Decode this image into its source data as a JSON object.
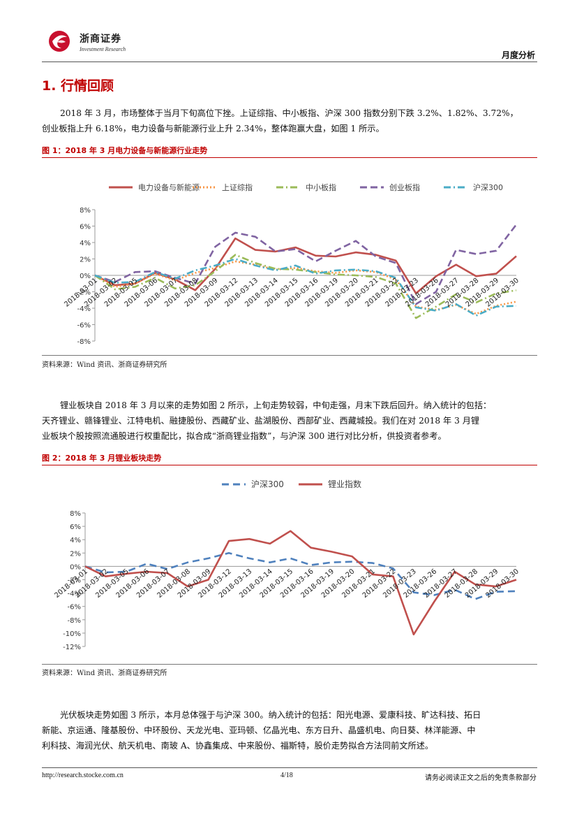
{
  "header": {
    "brand_cn": "浙商证券",
    "brand_en": "Investment Research",
    "report_type": "月度分析"
  },
  "section": {
    "title": "1. 行情回顾"
  },
  "para1": {
    "line1": "2018 年 3 月，市场整体于当月下旬高位下挫。上证综指、中小板指、沪深 300 指数分别下跌 3.2%、1.82%、3.72%，",
    "line2": "创业板指上升 6.18%，电力设备与新能源行业上升 2.34%，整体跑赢大盘，如图 1 所示。"
  },
  "fig1": {
    "title": "图 1：2018 年 3 月电力设备与新能源行业走势",
    "source": "资料来源：Wind 资讯、浙商证券研究所"
  },
  "para2": {
    "line1": "锂业板块自 2018 年 3 月以来的走势如图 2 所示，上旬走势较弱，中旬走强，月末下跌后回升。纳入统计的包括：",
    "line2": "天齐锂业、赣锋锂业、江特电机、融捷股份、西藏矿业、盐湖股份、西部矿业、西藏城投。我们在对 2018 年 3 月锂",
    "line3": "业板块个股按照流通股进行权重配比，拟合成“浙商锂业指数”，与沪深 300 进行对比分析，供投资者参考。"
  },
  "fig2": {
    "title": "图 2：2018 年 3 月锂业板块走势",
    "source": "资料来源：Wind 资讯、浙商证券研究所"
  },
  "para3": {
    "line1": "光伏板块走势如图 3 所示，本月总体强于与沪深 300。纳入统计的包括：阳光电源、爱康科技、旷达科技、拓日",
    "line2": "新能、京运通、隆基股份、中环股份、天龙光电、亚玛顿、亿晶光电、东方日升、晶盛机电、向日葵、林洋能源、中",
    "line3": "利科技、海润光伏、航天机电、南玻 A、协鑫集成、中来股份、福斯特，股价走势拟合方法同前文所述。"
  },
  "footer": {
    "url": "http://research.stocke.com.cn",
    "page": "4/18",
    "disclaimer": "请务必阅读正文之后的免责条款部分"
  },
  "chart_data": [
    {
      "type": "line",
      "title": "图 1：2018 年 3 月电力设备与新能源行业走势",
      "categories": [
        "2018-03-01",
        "2018-03-02",
        "2018-03-05",
        "2018-03-06",
        "2018-03-07",
        "2018-03-08",
        "2018-03-09",
        "2018-03-12",
        "2018-03-13",
        "2018-03-14",
        "2018-03-15",
        "2018-03-16",
        "2018-03-19",
        "2018-03-20",
        "2018-03-21",
        "2018-03-22",
        "2018-03-23",
        "2018-03-26",
        "2018-03-27",
        "2018-03-28",
        "2018-03-29",
        "2018-03-30"
      ],
      "yticks": [
        "8%",
        "6%",
        "4%",
        "2%",
        "0%",
        "-2%",
        "-4%",
        "-6%",
        "-8%"
      ],
      "ylim": [
        -8,
        8
      ],
      "legend_position": "top",
      "series": [
        {
          "name": "电力设备与新能源",
          "color": "#c0504d",
          "dash": "",
          "values": [
            0.0,
            -1.2,
            -1.0,
            0.3,
            -0.5,
            -1.8,
            0.8,
            4.5,
            3.1,
            2.9,
            3.4,
            2.4,
            2.3,
            2.8,
            2.5,
            1.8,
            -2.2,
            -0.1,
            1.3,
            -0.1,
            0.2,
            2.34
          ]
        },
        {
          "name": "上证综指",
          "color": "#f79646",
          "dash": "2,3",
          "values": [
            0.0,
            -1.4,
            -1.0,
            0.2,
            -0.6,
            0.3,
            0.9,
            1.7,
            1.3,
            0.7,
            0.9,
            0.5,
            0.3,
            0.6,
            0.4,
            -0.5,
            -3.8,
            -4.2,
            -3.6,
            -4.7,
            -3.7,
            -3.2
          ]
        },
        {
          "name": "中小板指",
          "color": "#9bbb59",
          "dash": "10,4,2,4",
          "values": [
            0.0,
            -1.7,
            -1.4,
            -0.3,
            -1.6,
            -1.2,
            0.5,
            2.5,
            1.5,
            0.8,
            0.7,
            0.4,
            0.1,
            0.0,
            -0.2,
            -1.0,
            -5.2,
            -3.8,
            -2.3,
            -3.3,
            -2.2,
            -1.82
          ]
        },
        {
          "name": "创业板指",
          "color": "#8064a2",
          "dash": "10,5",
          "values": [
            0.0,
            -0.8,
            0.4,
            0.5,
            -0.3,
            -1.0,
            3.5,
            5.2,
            4.7,
            2.9,
            3.2,
            1.7,
            3.0,
            4.2,
            2.3,
            1.5,
            -3.5,
            -2.0,
            3.1,
            2.6,
            3.0,
            6.18
          ]
        },
        {
          "name": "沪深300",
          "color": "#4bacc6",
          "dash": "10,4,2,4",
          "values": [
            0.0,
            -0.9,
            -0.8,
            0.4,
            -0.4,
            0.6,
            1.2,
            2.0,
            1.2,
            0.6,
            1.2,
            0.2,
            0.6,
            0.7,
            0.5,
            -0.3,
            -3.9,
            -4.3,
            -3.5,
            -4.9,
            -3.8,
            -3.72
          ]
        }
      ]
    },
    {
      "type": "line",
      "title": "图 2：2018 年 3 月锂业板块走势",
      "categories": [
        "2018-03-01",
        "2018-03-02",
        "2018-03-05",
        "2018-03-06",
        "2018-03-07",
        "2018-03-08",
        "2018-03-09",
        "2018-03-12",
        "2018-03-13",
        "2018-03-14",
        "2018-03-15",
        "2018-03-16",
        "2018-03-19",
        "2018-03-20",
        "2018-03-21",
        "2018-03-22",
        "2018-03-23",
        "2018-03-26",
        "2018-03-27",
        "2018-03-28",
        "2018-03-29",
        "2018-03-30"
      ],
      "yticks": [
        "8%",
        "6%",
        "4%",
        "2%",
        "0%",
        "-2%",
        "-4%",
        "-6%",
        "-8%",
        "-10%",
        "-12%"
      ],
      "ylim": [
        -12,
        8
      ],
      "legend_position": "top",
      "series": [
        {
          "name": "沪深300",
          "color": "#4f81bd",
          "dash": "10,6",
          "values": [
            0.0,
            -0.9,
            -0.8,
            0.4,
            -0.4,
            0.6,
            1.2,
            2.0,
            1.2,
            0.6,
            1.2,
            0.2,
            0.6,
            0.7,
            0.5,
            -0.3,
            -3.9,
            -4.3,
            -3.5,
            -4.9,
            -3.8,
            -3.72
          ]
        },
        {
          "name": "锂业指数",
          "color": "#c0504d",
          "dash": "",
          "values": [
            0.0,
            -1.5,
            -1.1,
            -0.8,
            -1.0,
            -3.0,
            -2.0,
            3.8,
            4.1,
            3.4,
            5.3,
            2.8,
            2.2,
            1.5,
            -1.2,
            -1.5,
            -10.2,
            -5.3,
            -0.8,
            -2.7,
            -3.0,
            -2.0
          ]
        }
      ]
    }
  ]
}
